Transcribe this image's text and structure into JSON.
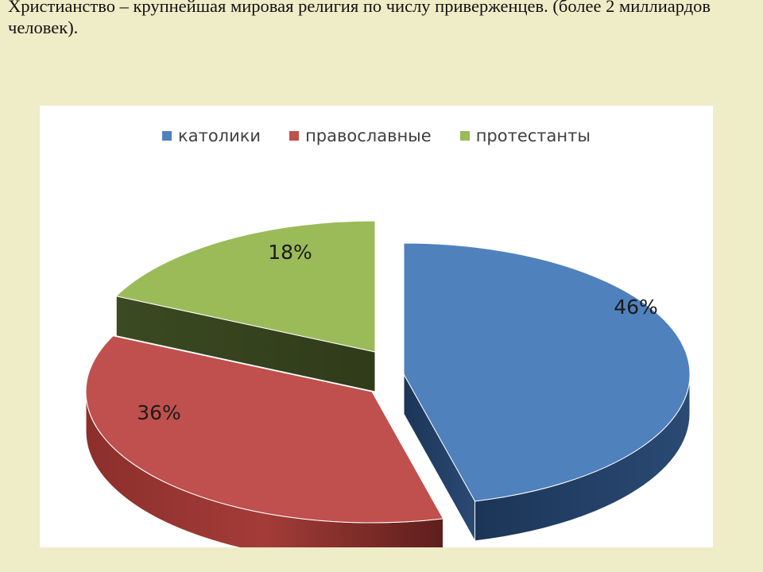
{
  "slide": {
    "text": "Христианство – крупнейшая мировая религия по числу приверженцев. (более 2 миллиардов человек)."
  },
  "chart_data": {
    "type": "pie",
    "style": "3d-exploded",
    "categories": [
      "католики",
      "православные",
      "протестанты"
    ],
    "values": [
      46,
      36,
      18
    ],
    "data_labels": [
      "46%",
      "36%",
      "18%"
    ],
    "colors": [
      "#4f81bd",
      "#c0504d",
      "#9bbb59"
    ],
    "legend_position": "top"
  }
}
